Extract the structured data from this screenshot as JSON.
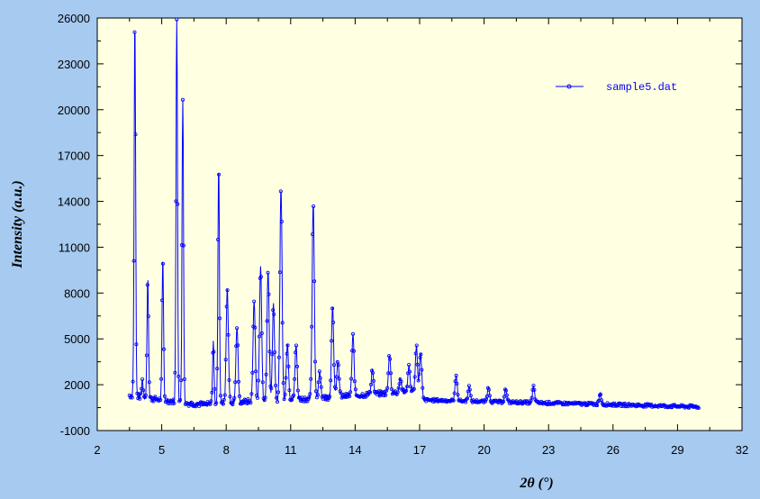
{
  "chart_data": {
    "type": "line",
    "title": "",
    "xlabel_prefix": "2",
    "xlabel_theta": "θ",
    "xlabel_suffix": " (°)",
    "ylabel": "Intensity (a.u.)",
    "xlim": [
      2,
      32
    ],
    "ylim": [
      -1000,
      26000
    ],
    "x_ticks": [
      2,
      5,
      8,
      11,
      14,
      17,
      20,
      23,
      26,
      29,
      32
    ],
    "y_ticks": [
      -1000,
      2000,
      5000,
      8000,
      11000,
      14000,
      17000,
      20000,
      23000,
      26000
    ],
    "grid": false,
    "legend_position": "top-right",
    "colors": {
      "series": "#0000ff",
      "plot_bg": "#ffffe1",
      "page_bg": "#a6caf0"
    },
    "baseline": [
      [
        3.5,
        1300
      ],
      [
        6,
        800
      ],
      [
        7,
        700
      ],
      [
        9,
        900
      ],
      [
        12,
        1100
      ],
      [
        15,
        1400
      ],
      [
        17,
        1600
      ],
      [
        17.2,
        1000
      ],
      [
        20,
        900
      ],
      [
        23,
        800
      ],
      [
        26,
        700
      ],
      [
        30,
        550
      ]
    ],
    "peaks": [
      {
        "x": 3.75,
        "y": 26000
      },
      {
        "x": 4.1,
        "y": 2300
      },
      {
        "x": 4.35,
        "y": 9000
      },
      {
        "x": 5.05,
        "y": 10200
      },
      {
        "x": 5.7,
        "y": 26000
      },
      {
        "x": 5.98,
        "y": 20800
      },
      {
        "x": 7.4,
        "y": 4700
      },
      {
        "x": 7.65,
        "y": 16500
      },
      {
        "x": 8.05,
        "y": 8400
      },
      {
        "x": 8.5,
        "y": 5800
      },
      {
        "x": 9.3,
        "y": 7600
      },
      {
        "x": 9.6,
        "y": 9800
      },
      {
        "x": 9.95,
        "y": 9500
      },
      {
        "x": 10.2,
        "y": 7200
      },
      {
        "x": 10.55,
        "y": 14900
      },
      {
        "x": 10.85,
        "y": 4800
      },
      {
        "x": 11.25,
        "y": 4600
      },
      {
        "x": 12.05,
        "y": 13800
      },
      {
        "x": 12.35,
        "y": 2900
      },
      {
        "x": 12.95,
        "y": 7200
      },
      {
        "x": 13.2,
        "y": 3600
      },
      {
        "x": 13.9,
        "y": 5200
      },
      {
        "x": 14.8,
        "y": 3000
      },
      {
        "x": 15.6,
        "y": 4000
      },
      {
        "x": 16.1,
        "y": 2400
      },
      {
        "x": 16.5,
        "y": 3200
      },
      {
        "x": 16.85,
        "y": 4500
      },
      {
        "x": 17.05,
        "y": 4000
      },
      {
        "x": 18.7,
        "y": 2600
      },
      {
        "x": 19.3,
        "y": 1900
      },
      {
        "x": 20.2,
        "y": 1800
      },
      {
        "x": 21.0,
        "y": 1700
      },
      {
        "x": 22.3,
        "y": 1900
      },
      {
        "x": 25.4,
        "y": 1400
      }
    ],
    "series": [
      {
        "name": "sample5.dat"
      }
    ]
  }
}
